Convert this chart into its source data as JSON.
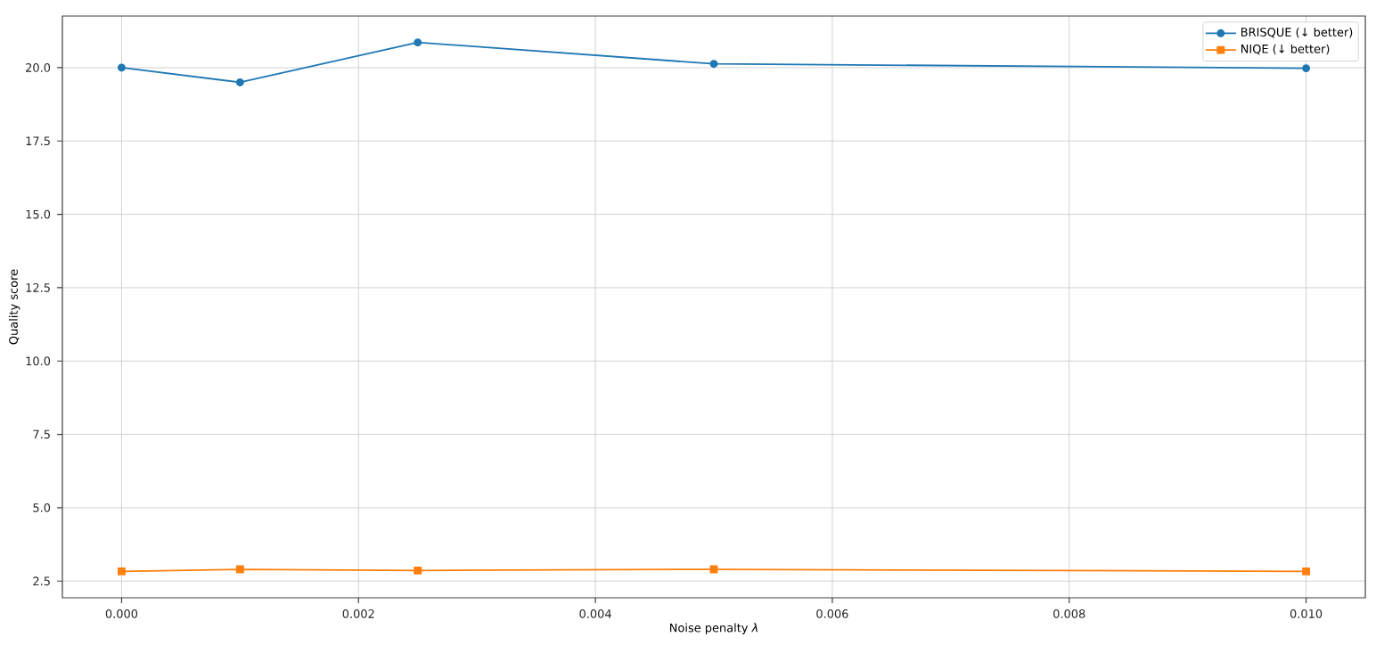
{
  "chart_data": {
    "type": "line",
    "xlabel": "Noise penalty *λ*",
    "ylabel": "Quality score",
    "x": [
      0,
      0.001,
      0.0025,
      0.005,
      0.01
    ],
    "series": [
      {
        "name": "BRISQUE (↓ better)",
        "color": "#1f77b4",
        "marker": "circle",
        "values": [
          20.0,
          19.5,
          20.86,
          20.13,
          19.98
        ]
      },
      {
        "name": "NIQE (↓ better)",
        "color": "#ff7f0e",
        "marker": "square",
        "values": [
          2.83,
          2.9,
          2.86,
          2.9,
          2.83
        ]
      }
    ],
    "xlim": [
      -0.0005,
      0.0105
    ],
    "ylim": [
      1.93,
      21.76
    ],
    "xticks": [
      {
        "value": 0,
        "label": "0.000"
      },
      {
        "value": 0.002,
        "label": "0.002"
      },
      {
        "value": 0.004,
        "label": "0.004"
      },
      {
        "value": 0.006,
        "label": "0.006"
      },
      {
        "value": 0.008,
        "label": "0.008"
      },
      {
        "value": 0.01,
        "label": "0.010"
      }
    ],
    "yticks": [
      {
        "value": 2.5,
        "label": "2.5"
      },
      {
        "value": 5,
        "label": "5.0"
      },
      {
        "value": 7.5,
        "label": "7.5"
      },
      {
        "value": 10,
        "label": "10.0"
      },
      {
        "value": 12.5,
        "label": "12.5"
      },
      {
        "value": 15,
        "label": "15.0"
      },
      {
        "value": 17.5,
        "label": "17.5"
      },
      {
        "value": 20,
        "label": "20.0"
      }
    ],
    "grid": true,
    "legend": "top right",
    "line_style": "solid"
  }
}
